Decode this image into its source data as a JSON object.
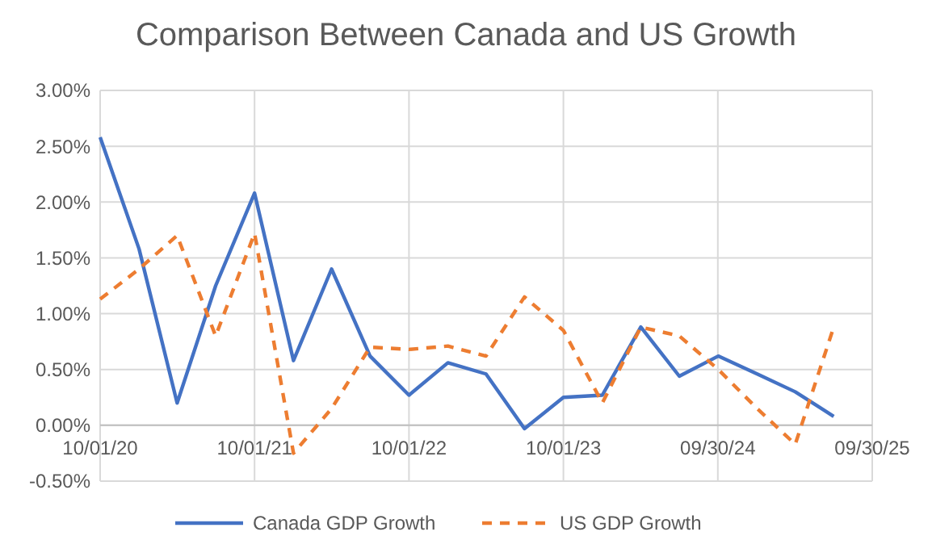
{
  "chart_data": {
    "type": "line",
    "title": "Comparison Between Canada and US Growth",
    "x": [
      "2020-10-01",
      "2021-01-01",
      "2021-04-01",
      "2021-07-01",
      "2021-10-01",
      "2022-01-01",
      "2022-04-01",
      "2022-07-01",
      "2022-10-01",
      "2023-01-01",
      "2023-04-01",
      "2023-07-01",
      "2023-10-01",
      "2024-01-01",
      "2024-04-01",
      "2024-07-01",
      "2024-10-01",
      "2025-01-01",
      "2025-04-01",
      "2025-07-01"
    ],
    "series": [
      {
        "name": "Canada GDP Growth",
        "color": "#4472c4",
        "line_style": "solid",
        "values": [
          2.58,
          1.58,
          0.2,
          1.25,
          2.08,
          0.58,
          1.4,
          0.62,
          0.27,
          0.56,
          0.46,
          -0.03,
          0.25,
          0.27,
          0.88,
          0.44,
          0.62,
          0.46,
          0.3,
          0.08
        ]
      },
      {
        "name": "US GDP Growth",
        "color": "#ed7d31",
        "line_style": "dashed",
        "values": [
          1.13,
          1.4,
          1.7,
          0.8,
          1.72,
          -0.25,
          0.15,
          0.7,
          0.68,
          0.71,
          0.62,
          1.15,
          0.85,
          0.2,
          0.88,
          0.8,
          0.5,
          0.15,
          -0.17,
          0.88
        ]
      }
    ],
    "xlim": [
      "2020-10-01",
      "2025-09-30"
    ],
    "xticks": [
      {
        "value": "2020-10-01",
        "label": "10/01/20"
      },
      {
        "value": "2021-10-01",
        "label": "10/01/21"
      },
      {
        "value": "2022-10-01",
        "label": "10/01/22"
      },
      {
        "value": "2023-10-01",
        "label": "10/01/23"
      },
      {
        "value": "2024-09-30",
        "label": "09/30/24"
      },
      {
        "value": "2025-09-30",
        "label": "09/30/25"
      }
    ],
    "ylim": [
      -0.5,
      3
    ],
    "yticks": [
      {
        "value": -0.5,
        "label": "-0.50%"
      },
      {
        "value": 0,
        "label": "0.00%"
      },
      {
        "value": 0.5,
        "label": "0.50%"
      },
      {
        "value": 1,
        "label": "1.00%"
      },
      {
        "value": 1.5,
        "label": "1.50%"
      },
      {
        "value": 2,
        "label": "2.00%"
      },
      {
        "value": 2.5,
        "label": "2.50%"
      },
      {
        "value": 3,
        "label": "3.00%"
      }
    ],
    "grid": true,
    "legend": "bottom"
  }
}
